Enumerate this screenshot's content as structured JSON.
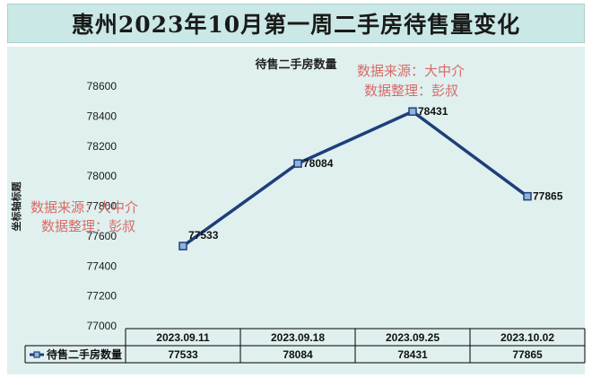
{
  "banner_title": "惠州2023年10月第一周二手房待售量变化",
  "watermark": {
    "line1": "数据来源：大中介",
    "line2": "数据整理：彭叔"
  },
  "colors": {
    "banner": "#c9e8e6",
    "plot_background": "#dff0ef",
    "series_line": "#1f3f7a",
    "watermark": "#d9534f"
  },
  "chart_data": {
    "type": "line",
    "title": "待售二手房数量",
    "ylabel": "坐标轴标题",
    "xlabel": "",
    "categories": [
      "2023.09.11",
      "2023.09.18",
      "2023.09.25",
      "2023.10.02"
    ],
    "series": [
      {
        "name": "待售二手房数量",
        "values": [
          77533,
          78084,
          78431,
          77865
        ]
      }
    ],
    "ylim": [
      77000,
      78600
    ],
    "yticks": [
      77000,
      77200,
      77400,
      77600,
      77800,
      78000,
      78200,
      78400,
      78600
    ],
    "grid": false,
    "data_labels": true,
    "data_table": true,
    "legend": "data-table"
  }
}
